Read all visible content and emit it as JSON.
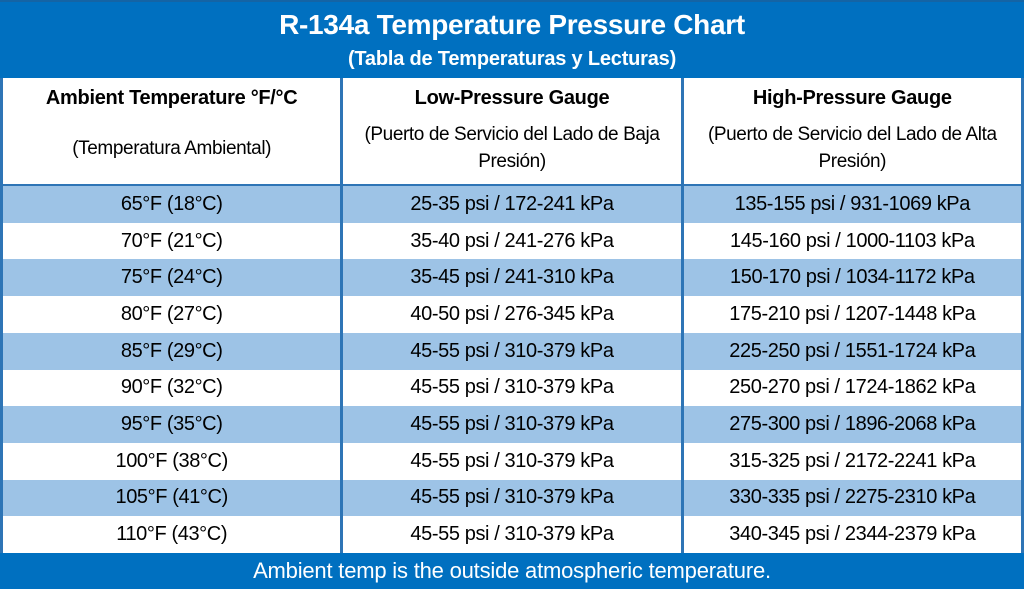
{
  "title_band": {
    "title": "R-134a Temperature Pressure Chart",
    "subtitle": "(Tabla de Temperaturas y Lecturas)"
  },
  "table": {
    "columns": [
      {
        "title": "Ambient Temperature °F/°C",
        "subtitle": "(Temperatura Ambiental)"
      },
      {
        "title": "Low-Pressure Gauge",
        "subtitle": "(Puerto de Servicio del Lado de Baja Presión)"
      },
      {
        "title": "High-Pressure Gauge",
        "subtitle": "(Puerto de Servicio del Lado de Alta Presión)"
      }
    ],
    "rows": [
      [
        "65°F (18°C)",
        "25-35 psi / 172-241 kPa",
        "135-155 psi / 931-1069 kPa"
      ],
      [
        "70°F (21°C)",
        "35-40 psi / 241-276 kPa",
        "145-160 psi / 1000-1103 kPa"
      ],
      [
        "75°F (24°C)",
        "35-45 psi / 241-310 kPa",
        "150-170 psi / 1034-1172 kPa"
      ],
      [
        "80°F (27°C)",
        "40-50 psi / 276-345 kPa",
        "175-210 psi / 1207-1448 kPa"
      ],
      [
        "85°F (29°C)",
        "45-55 psi / 310-379 kPa",
        "225-250 psi / 1551-1724 kPa"
      ],
      [
        "90°F (32°C)",
        "45-55 psi / 310-379 kPa",
        "250-270 psi / 1724-1862 kPa"
      ],
      [
        "95°F (35°C)",
        "45-55 psi / 310-379 kPa",
        "275-300 psi / 1896-2068 kPa"
      ],
      [
        "100°F (38°C)",
        "45-55 psi / 310-379 kPa",
        "315-325 psi / 2172-2241 kPa"
      ],
      [
        "105°F (41°C)",
        "45-55 psi / 310-379 kPa",
        "330-335 psi / 2275-2310 kPa"
      ],
      [
        "110°F (43°C)",
        "45-55 psi / 310-379 kPa",
        "340-345 psi / 2344-2379 kPa"
      ]
    ]
  },
  "footer": {
    "note": "Ambient temp is the outside atmospheric temperature."
  },
  "colors": {
    "band_blue": "#0070C0",
    "border_blue": "#2E75B6",
    "row_alt_blue": "#9DC3E6",
    "row_white": "#FFFFFF",
    "header_text": "#000000",
    "band_text": "#FFFFFF"
  },
  "chart_data": {
    "type": "table",
    "title": "R-134a Temperature Pressure Chart",
    "subtitle": "(Tabla de Temperaturas y Lecturas)",
    "columns": [
      "Ambient Temperature °F/°C (Temperatura Ambiental)",
      "Low-Pressure Gauge (Puerto de Servicio del Lado de Baja Presión)",
      "High-Pressure Gauge (Puerto de Servicio del Lado de Alta Presión)"
    ],
    "rows": [
      [
        "65°F (18°C)",
        "25-35 psi / 172-241 kPa",
        "135-155 psi / 931-1069 kPa"
      ],
      [
        "70°F (21°C)",
        "35-40 psi / 241-276 kPa",
        "145-160 psi / 1000-1103 kPa"
      ],
      [
        "75°F (24°C)",
        "35-45 psi / 241-310 kPa",
        "150-170 psi / 1034-1172 kPa"
      ],
      [
        "80°F (27°C)",
        "40-50 psi / 276-345 kPa",
        "175-210 psi / 1207-1448 kPa"
      ],
      [
        "85°F (29°C)",
        "45-55 psi / 310-379 kPa",
        "225-250 psi / 1551-1724 kPa"
      ],
      [
        "90°F (32°C)",
        "45-55 psi / 310-379 kPa",
        "250-270 psi / 1724-1862 kPa"
      ],
      [
        "95°F (35°C)",
        "45-55 psi / 310-379 kPa",
        "275-300 psi / 1896-2068 kPa"
      ],
      [
        "100°F (38°C)",
        "45-55 psi / 310-379 kPa",
        "315-325 psi / 2172-2241 kPa"
      ],
      [
        "105°F (41°C)",
        "45-55 psi / 310-379 kPa",
        "330-335 psi / 2275-2310 kPa"
      ],
      [
        "110°F (43°C)",
        "45-55 psi / 310-379 kPa",
        "340-345 psi / 2344-2379 kPa"
      ]
    ],
    "footnote": "Ambient temp is the outside atmospheric temperature."
  }
}
